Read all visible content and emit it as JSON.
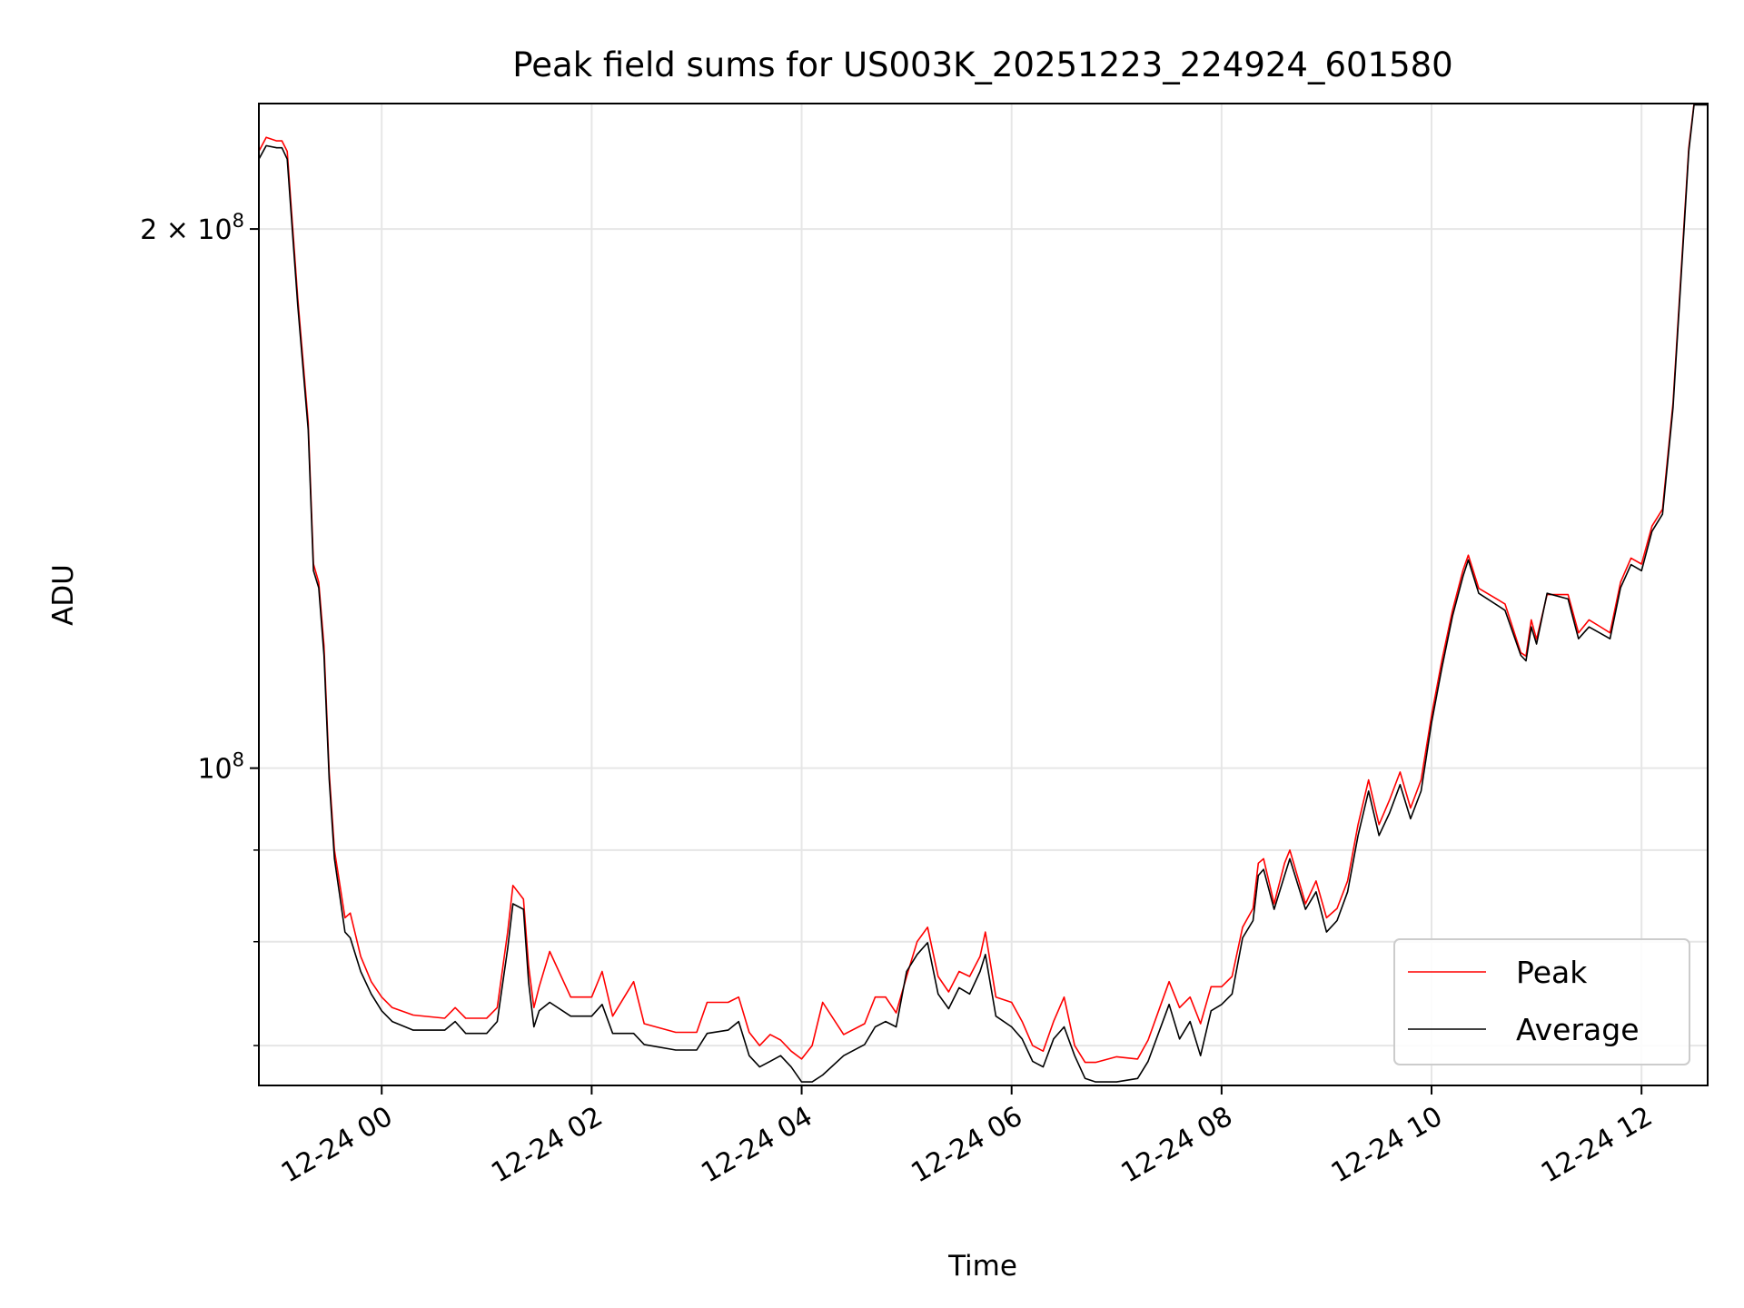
{
  "chart_data": {
    "type": "line",
    "title": "Peak field sums for US003K_20251223_224924_601580",
    "xlabel": "Time",
    "ylabel": "ADU",
    "yscale": "log",
    "x_units": "hours since 12-24 00:00",
    "xlim": [
      -1.17,
      12.63
    ],
    "ylim": [
      66500000.0,
      235000000.0
    ],
    "grid": true,
    "legend_position": "lower-right",
    "x_ticks": [
      {
        "value": 0,
        "label": "12-24 00"
      },
      {
        "value": 2,
        "label": "12-24 02"
      },
      {
        "value": 4,
        "label": "12-24 04"
      },
      {
        "value": 6,
        "label": "12-24 06"
      },
      {
        "value": 8,
        "label": "12-24 08"
      },
      {
        "value": 10,
        "label": "12-24 10"
      },
      {
        "value": 12,
        "label": "12-24 12"
      }
    ],
    "y_major_ticks": [
      {
        "value": 200000000.0,
        "base": "2 × 10",
        "exp": "8"
      },
      {
        "value": 100000000.0,
        "base": "10",
        "exp": "8"
      }
    ],
    "y_minor_ticks": [
      70000000.0,
      80000000.0,
      90000000.0
    ],
    "x": [
      -1.17,
      -1.1,
      -1.0,
      -0.95,
      -0.9,
      -0.8,
      -0.7,
      -0.65,
      -0.6,
      -0.55,
      -0.5,
      -0.45,
      -0.35,
      -0.3,
      -0.2,
      -0.1,
      0.0,
      0.1,
      0.3,
      0.6,
      0.7,
      0.8,
      1.0,
      1.1,
      1.2,
      1.25,
      1.35,
      1.4,
      1.45,
      1.5,
      1.6,
      1.8,
      2.0,
      2.1,
      2.2,
      2.4,
      2.5,
      2.8,
      3.0,
      3.1,
      3.3,
      3.4,
      3.5,
      3.6,
      3.7,
      3.8,
      3.9,
      4.0,
      4.1,
      4.2,
      4.4,
      4.6,
      4.7,
      4.8,
      4.9,
      5.0,
      5.1,
      5.2,
      5.3,
      5.4,
      5.5,
      5.6,
      5.7,
      5.75,
      5.85,
      6.0,
      6.1,
      6.2,
      6.3,
      6.4,
      6.5,
      6.6,
      6.7,
      6.8,
      7.0,
      7.2,
      7.3,
      7.5,
      7.6,
      7.7,
      7.8,
      7.9,
      8.0,
      8.1,
      8.2,
      8.3,
      8.35,
      8.4,
      8.5,
      8.6,
      8.65,
      8.8,
      8.9,
      9.0,
      9.1,
      9.2,
      9.3,
      9.4,
      9.5,
      9.6,
      9.7,
      9.8,
      9.9,
      10.0,
      10.1,
      10.2,
      10.3,
      10.35,
      10.45,
      10.7,
      10.85,
      10.9,
      10.95,
      11.0,
      11.1,
      11.3,
      11.4,
      11.5,
      11.6,
      11.7,
      11.8,
      11.9,
      12.0,
      12.1,
      12.2,
      12.3,
      12.4,
      12.45,
      12.5,
      12.63
    ],
    "series": [
      {
        "name": "Peak",
        "color": "#ff0000",
        "values": [
          221000000.0,
          225000000.0,
          224000000.0,
          224000000.0,
          221000000.0,
          183000000.0,
          156000000.0,
          130000000.0,
          127000000.0,
          117000000.0,
          99500000.0,
          90000000.0,
          82500000.0,
          83000000.0,
          78500000.0,
          76000000.0,
          74500000.0,
          73500000.0,
          72800000.0,
          72500000.0,
          73500000.0,
          72500000.0,
          72500000.0,
          73500000.0,
          81000000.0,
          86000000.0,
          84500000.0,
          77500000.0,
          73500000.0,
          75500000.0,
          79000000.0,
          74500000.0,
          74500000.0,
          77000000.0,
          72700000.0,
          76000000.0,
          72000000.0,
          71200000.0,
          71200000.0,
          74000000.0,
          74000000.0,
          74500000.0,
          71200000.0,
          70000000.0,
          71000000.0,
          70500000.0,
          69500000.0,
          68800000.0,
          70000000.0,
          74000000.0,
          71000000.0,
          72000000.0,
          74500000.0,
          74500000.0,
          73000000.0,
          76500000.0,
          80000000.0,
          81500000.0,
          76500000.0,
          75000000.0,
          77000000.0,
          76500000.0,
          78500000.0,
          81000000.0,
          74500000.0,
          74000000.0,
          72200000.0,
          70000000.0,
          69500000.0,
          72200000.0,
          74500000.0,
          70000000.0,
          68500000.0,
          68500000.0,
          69000000.0,
          68800000.0,
          70500000.0,
          76000000.0,
          73500000.0,
          74500000.0,
          72000000.0,
          75500000.0,
          75500000.0,
          76500000.0,
          81500000.0,
          83500000.0,
          88500000.0,
          89000000.0,
          84000000.0,
          88500000.0,
          90000000.0,
          84000000.0,
          86500000.0,
          82500000.0,
          83500000.0,
          86500000.0,
          93000000.0,
          98500000.0,
          93000000.0,
          96000000.0,
          99500000.0,
          95000000.0,
          98500000.0,
          107000000.0,
          115000000.0,
          122500000.0,
          129000000.0,
          131500000.0,
          126000000.0,
          123500000.0,
          116000000.0,
          115500000.0,
          121000000.0,
          118000000.0,
          125000000.0,
          125000000.0,
          119000000.0,
          121000000.0,
          120000000.0,
          119000000.0,
          127000000.0,
          131000000.0,
          130000000.0,
          136500000.0,
          139500000.0,
          160000000.0,
          199000000.0,
          222000000.0,
          235000000.0,
          235000000.0
        ]
      },
      {
        "name": "Average",
        "color": "#000000",
        "values": [
          218800000.0,
          222600000.0,
          222000000.0,
          222000000.0,
          218800000.0,
          181300000.0,
          154500000.0,
          128900000.0,
          126100000.0,
          115600000.0,
          98600000.0,
          89000000.0,
          81000000.0,
          80400000.0,
          77000000.0,
          74800000.0,
          73200000.0,
          72200000.0,
          71400000.0,
          71400000.0,
          72200000.0,
          71100000.0,
          71100000.0,
          72200000.0,
          79300000.0,
          84000000.0,
          83400000.0,
          75900000.0,
          71700000.0,
          73200000.0,
          74000000.0,
          72700000.0,
          72700000.0,
          73800000.0,
          71100000.0,
          71100000.0,
          70100000.0,
          69600000.0,
          69600000.0,
          71100000.0,
          71400000.0,
          72200000.0,
          69100000.0,
          68100000.0,
          68600000.0,
          69100000.0,
          68100000.0,
          66800000.0,
          66800000.0,
          67400000.0,
          69100000.0,
          70100000.0,
          71700000.0,
          72200000.0,
          71700000.0,
          77000000.0,
          78700000.0,
          79900000.0,
          74800000.0,
          73400000.0,
          75400000.0,
          74800000.0,
          77000000.0,
          78700000.0,
          72700000.0,
          71700000.0,
          70600000.0,
          68600000.0,
          68100000.0,
          70600000.0,
          71700000.0,
          69100000.0,
          67100000.0,
          66800000.0,
          66800000.0,
          67100000.0,
          68600000.0,
          73800000.0,
          70600000.0,
          72200000.0,
          69100000.0,
          73200000.0,
          73800000.0,
          74800000.0,
          80400000.0,
          82200000.0,
          87100000.0,
          87800000.0,
          83400000.0,
          87100000.0,
          89000000.0,
          83400000.0,
          85300000.0,
          81000000.0,
          82200000.0,
          85300000.0,
          91700000.0,
          97100000.0,
          91700000.0,
          94400000.0,
          97900000.0,
          93700000.0,
          97100000.0,
          106000000.0,
          113900000.0,
          121600000.0,
          128000000.0,
          130700000.0,
          125200000.0,
          122500000.0,
          115600000.0,
          114800000.0,
          119900000.0,
          117300000.0,
          125200000.0,
          124300000.0,
          118100000.0,
          119900000.0,
          119000000.0,
          118100000.0,
          126100000.0,
          129900000.0,
          128900000.0,
          135600000.0,
          138600000.0,
          159000000.0,
          197700000.0,
          221000000.0,
          234600000.0,
          234600000.0
        ]
      }
    ]
  }
}
